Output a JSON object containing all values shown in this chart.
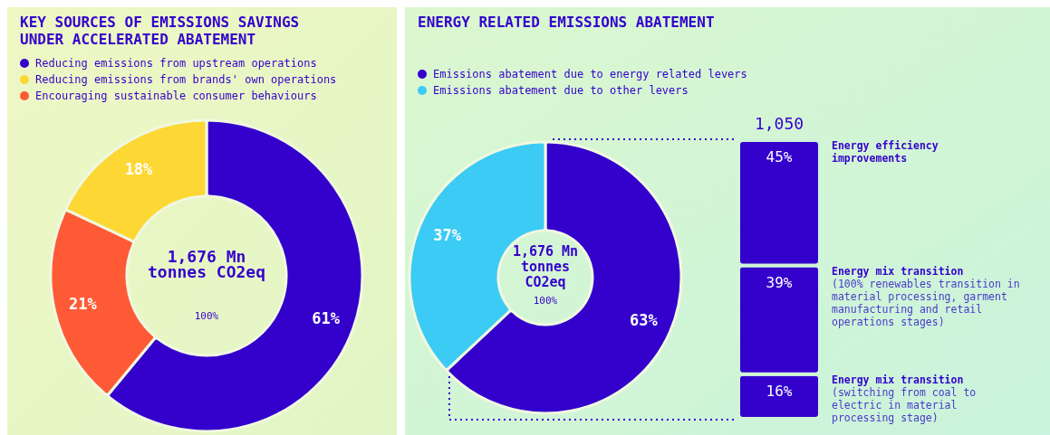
{
  "chart_data": [
    {
      "type": "donut",
      "title": "KEY SOURCES OF EMISSIONS SAVINGS\nUNDER ACCELERATED ABATEMENT",
      "categories": [
        "Reducing emissions from upstream operations",
        "Reducing emissions from brands' own operations",
        "Encouraging sustainable consumer behaviours"
      ],
      "values": [
        61,
        18,
        21
      ],
      "colors": [
        "#3300cc",
        "#fdd835",
        "#ff5a36"
      ],
      "value_labels": [
        "61%",
        "18%",
        "21%"
      ],
      "legend": "top left",
      "annotations": [
        "1,676 Mn tonnes CO2eq",
        "100%"
      ]
    },
    {
      "type": "donut",
      "title": "ENERGY RELATED EMISSIONS ABATEMENT",
      "categories": [
        "Emissions abatement due to energy related levers",
        "Emissions abatement due to other levers"
      ],
      "values": [
        63,
        37
      ],
      "colors": [
        "#3300cc",
        "#3ccbf4"
      ],
      "value_labels": [
        "63%",
        "37%"
      ],
      "legend": "top left",
      "annotations": [
        "1,676 Mn tonnes CO2eq",
        "100%"
      ]
    },
    {
      "type": "bar",
      "stacked": true,
      "categories": [
        null
      ],
      "series": [
        {
          "name": "Energy mix transition",
          "color": "#3300cc",
          "values": [
            16
          ],
          "value_labels": [
            "16%"
          ]
        },
        {
          "name": "Energy mix transition",
          "color": "#3300cc",
          "values": [
            39
          ],
          "value_labels": [
            "39%"
          ]
        },
        {
          "name": "Energy efficiency improvements",
          "color": "#3300cc",
          "values": [
            45
          ],
          "value_labels": [
            "45%"
          ]
        }
      ],
      "annotations": [
        "1,050",
        "(switching from coal to electric in material processing stage)",
        "(100% renewables transition in material processing, garment manufacturing and retail operations stages)"
      ]
    }
  ]
}
